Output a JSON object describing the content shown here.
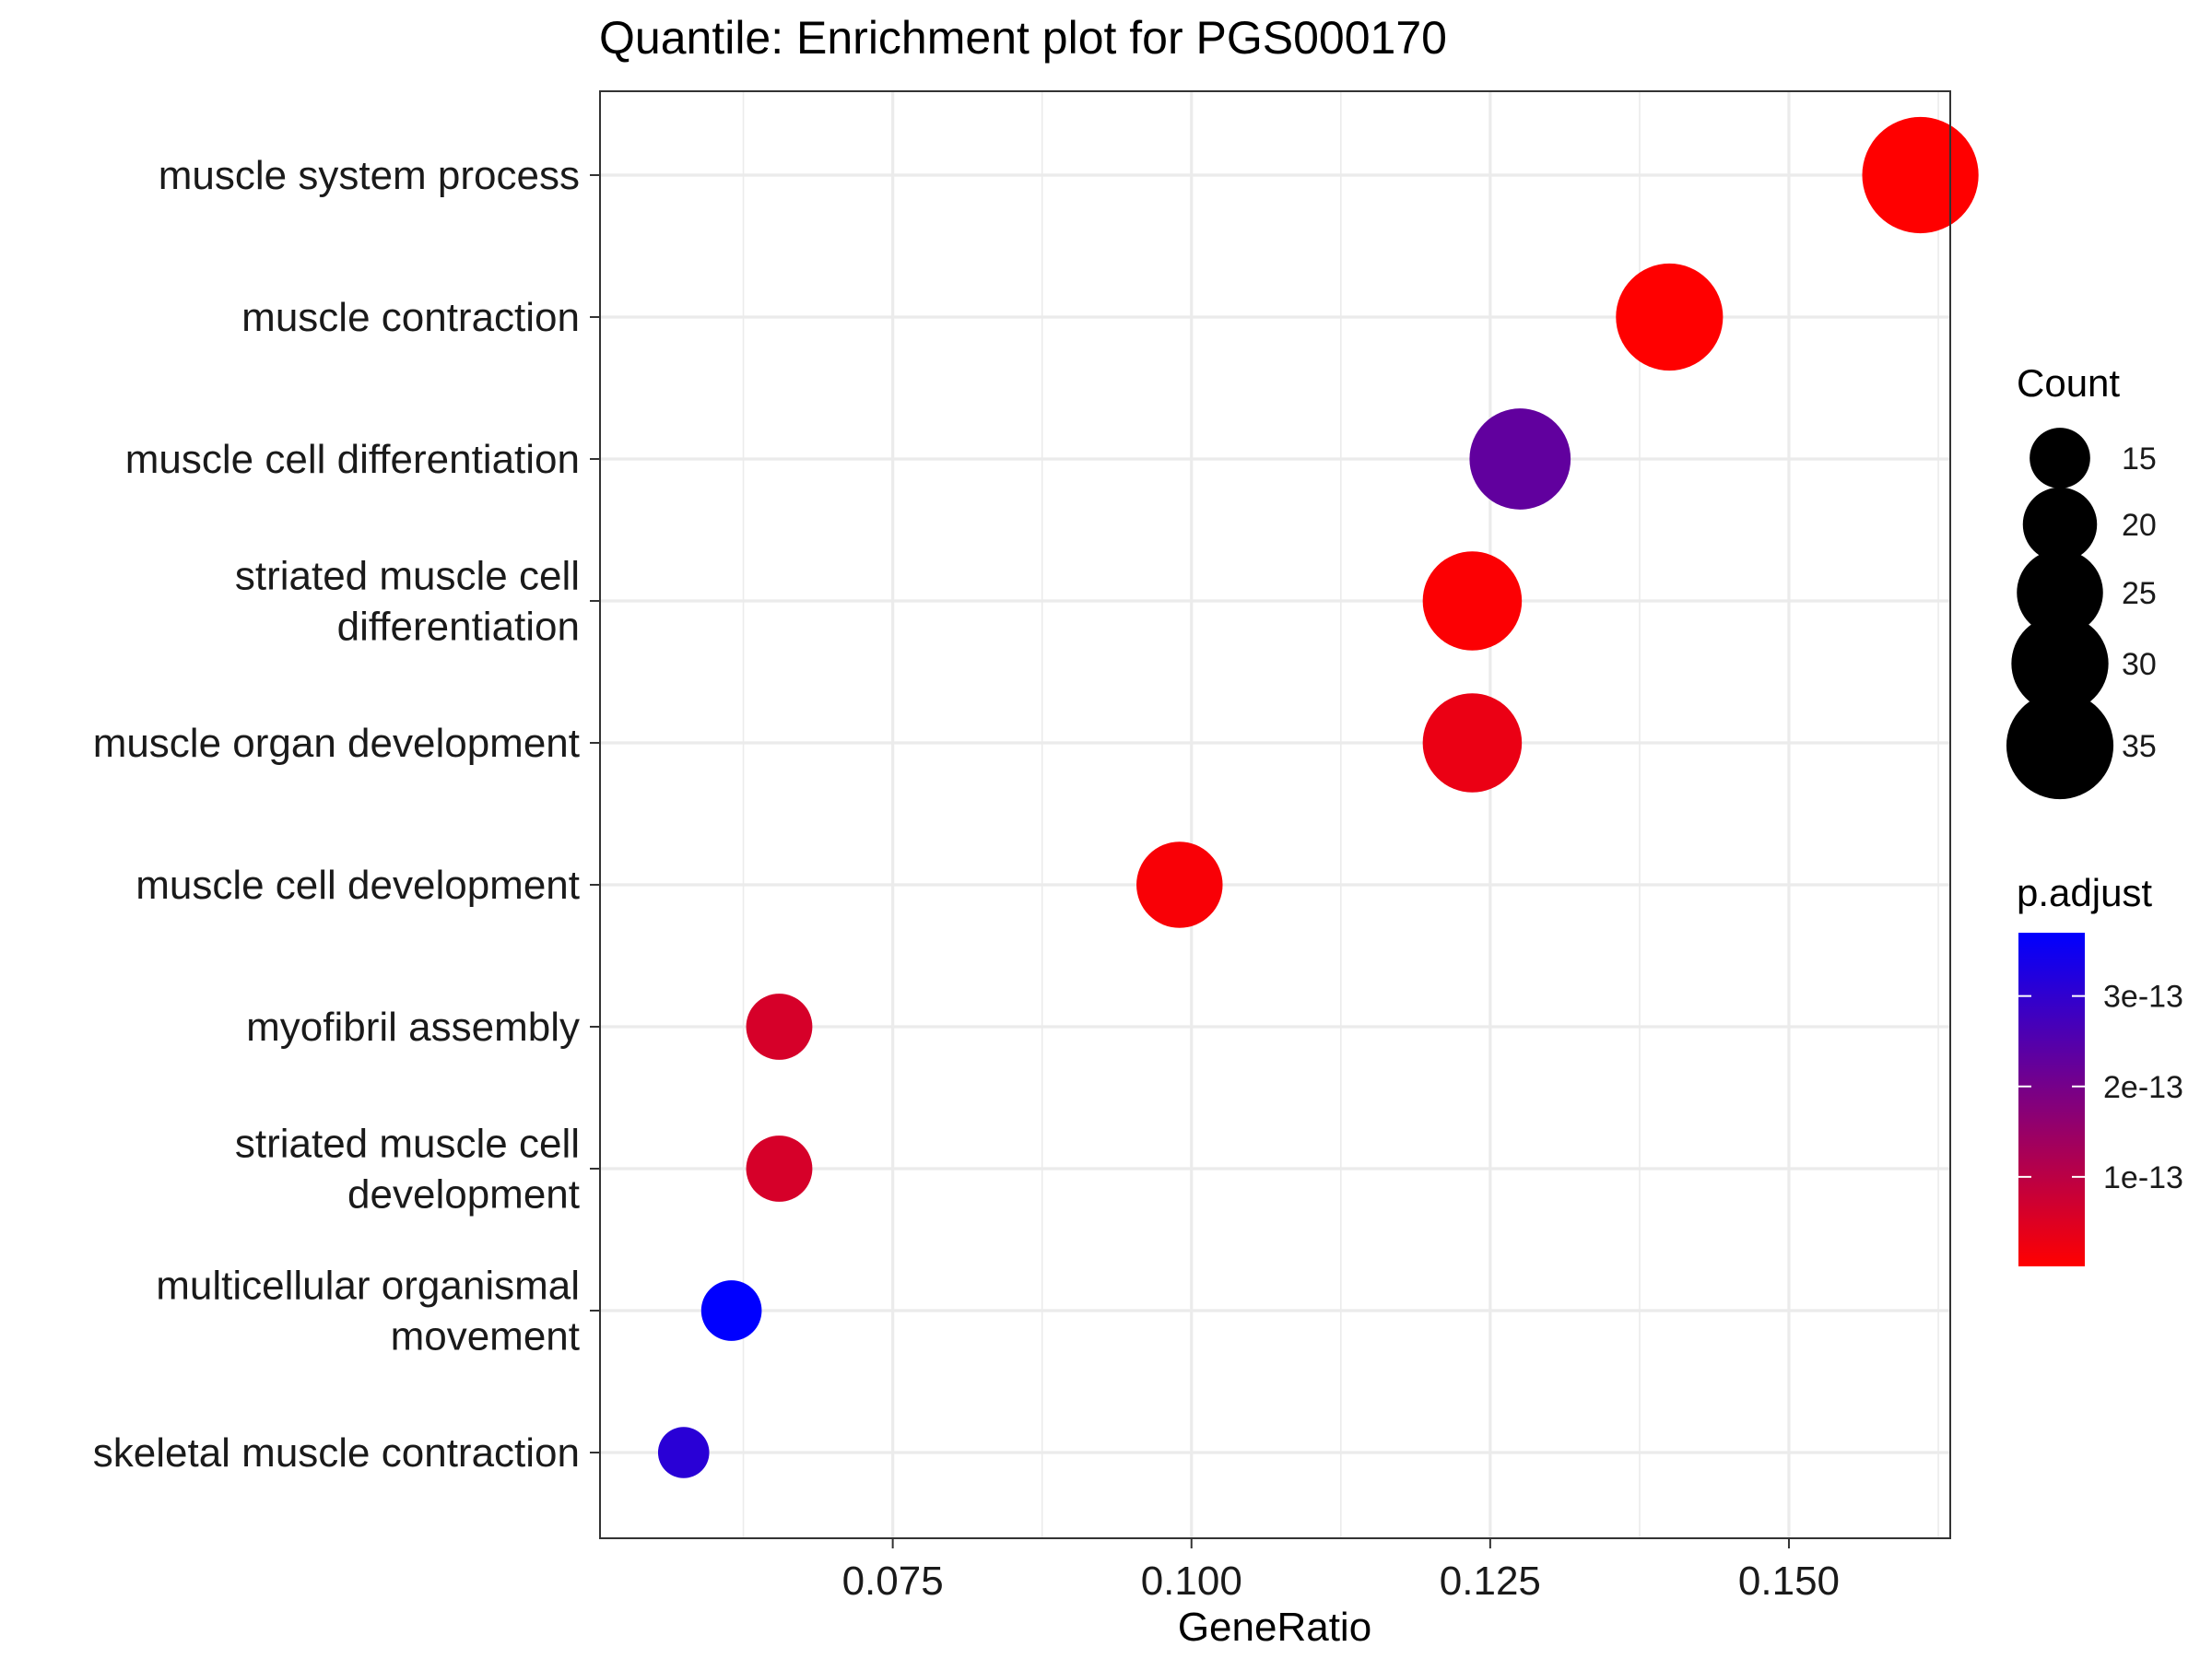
{
  "chart_data": {
    "type": "scatter",
    "title": "Quantile: Enrichment plot for PGS000170",
    "xlabel": "GeneRatio",
    "ylabel": "",
    "xlim": [
      0.0505,
      0.1635
    ],
    "x_ticks": [
      0.075,
      0.1,
      0.125,
      0.15
    ],
    "x_tick_labels": [
      "0.075",
      "0.100",
      "0.125",
      "0.150"
    ],
    "grid": true,
    "categories": [
      "muscle system process",
      "muscle contraction",
      "muscle cell differentiation",
      "striated muscle cell differentiation",
      "muscle organ development",
      "muscle cell development",
      "myofibril assembly",
      "striated muscle cell development",
      "multicellular organismal movement",
      "skeletal muscle contraction"
    ],
    "category_lines": [
      [
        "muscle system process"
      ],
      [
        "muscle contraction"
      ],
      [
        "muscle cell differentiation"
      ],
      [
        "striated muscle cell",
        "differentiation"
      ],
      [
        "muscle organ development"
      ],
      [
        "muscle cell development"
      ],
      [
        "myofibril assembly"
      ],
      [
        "striated muscle cell",
        "development"
      ],
      [
        "multicellular organismal",
        "movement"
      ],
      [
        "skeletal muscle contraction"
      ]
    ],
    "x": [
      0.161,
      0.14,
      0.1275,
      0.1235,
      0.1235,
      0.099,
      0.0655,
      0.0655,
      0.0615,
      0.0575
    ],
    "count": [
      40,
      35,
      32,
      31,
      31,
      25,
      17,
      17,
      15,
      12
    ],
    "p_adjust": [
      1e-15,
      1e-15,
      2.3e-13,
      5e-15,
      3e-14,
      1e-14,
      6e-14,
      6e-14,
      3.7e-13,
      3.1e-13
    ],
    "legends": {
      "size": {
        "title": "Count",
        "values": [
          15,
          20,
          25,
          30,
          35
        ],
        "labels": [
          "15",
          "20",
          "25",
          "30",
          "35"
        ]
      },
      "color": {
        "title": "p.adjust",
        "range": [
          1e-15,
          3.7e-13
        ],
        "ticks": [
          3e-13,
          2e-13,
          1e-13
        ],
        "labels": [
          "3e-13",
          "2e-13",
          "1e-13"
        ],
        "low_color": "#ff0000",
        "high_color": "#0000ff"
      },
      "placement": "right"
    }
  }
}
